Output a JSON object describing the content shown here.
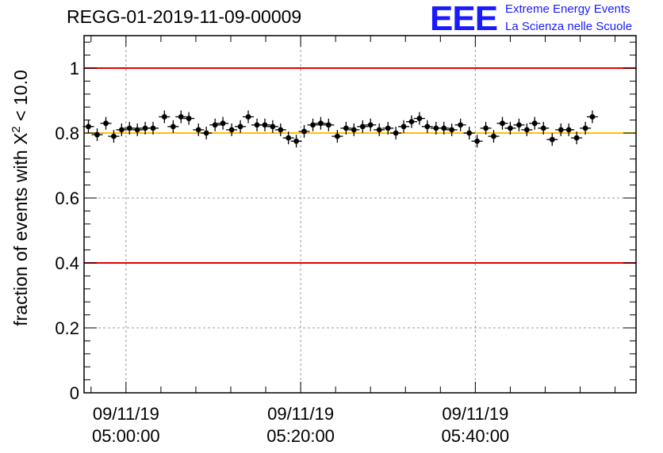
{
  "header": {
    "run_id": "REGG-01-2019-11-09-00009"
  },
  "logo": {
    "mark": "EEE",
    "line1": "Extreme Energy Events",
    "line2": "La Scienza nelle Scuole",
    "color": "#1a1aff"
  },
  "chart_data": {
    "type": "scatter",
    "title": "REGG-01-2019-11-09-00009",
    "xlabel": "",
    "ylabel": "fraction of events with χ² < 10.0",
    "ylabel_parts": {
      "pre": "fraction of events with X",
      "sup": "2",
      "post": " < 10.0"
    },
    "ylim": [
      0,
      1.1
    ],
    "y_ticks": [
      0,
      0.2,
      0.4,
      0.6,
      0.8,
      1
    ],
    "y_tick_labels": [
      "0",
      "0.2",
      "0.4",
      "0.6",
      "0.8",
      "1"
    ],
    "x_unit": "minutes since 05:00:00",
    "xlim": [
      -4.8,
      58.4
    ],
    "x_ticks": [
      {
        "value": 0,
        "date": "09/11/19",
        "time": "05:00:00"
      },
      {
        "value": 20,
        "date": "09/11/19",
        "time": "05:20:00"
      },
      {
        "value": 40,
        "date": "09/11/19",
        "time": "05:40:00"
      }
    ],
    "grid": true,
    "reference_lines": [
      {
        "y": 1.0,
        "color": "#e00000"
      },
      {
        "y": 0.8,
        "color": "#ffc000"
      },
      {
        "y": 0.4,
        "color": "#e00000"
      }
    ],
    "series": [
      {
        "name": "fraction",
        "color": "#000000",
        "points": [
          {
            "x": -4.3,
            "y": 0.82
          },
          {
            "x": -3.3,
            "y": 0.795
          },
          {
            "x": -2.3,
            "y": 0.83
          },
          {
            "x": -1.4,
            "y": 0.79
          },
          {
            "x": -0.5,
            "y": 0.81
          },
          {
            "x": 0.4,
            "y": 0.815
          },
          {
            "x": 1.3,
            "y": 0.81
          },
          {
            "x": 2.2,
            "y": 0.815
          },
          {
            "x": 3.1,
            "y": 0.815
          },
          {
            "x": 4.4,
            "y": 0.85
          },
          {
            "x": 5.4,
            "y": 0.82
          },
          {
            "x": 6.3,
            "y": 0.85
          },
          {
            "x": 7.2,
            "y": 0.845
          },
          {
            "x": 8.3,
            "y": 0.81
          },
          {
            "x": 9.2,
            "y": 0.8
          },
          {
            "x": 10.2,
            "y": 0.825
          },
          {
            "x": 11.1,
            "y": 0.83
          },
          {
            "x": 12.1,
            "y": 0.81
          },
          {
            "x": 13.1,
            "y": 0.82
          },
          {
            "x": 14.0,
            "y": 0.85
          },
          {
            "x": 15.0,
            "y": 0.825
          },
          {
            "x": 15.9,
            "y": 0.825
          },
          {
            "x": 16.8,
            "y": 0.82
          },
          {
            "x": 17.7,
            "y": 0.81
          },
          {
            "x": 18.6,
            "y": 0.785
          },
          {
            "x": 19.5,
            "y": 0.775
          },
          {
            "x": 20.4,
            "y": 0.805
          },
          {
            "x": 21.4,
            "y": 0.825
          },
          {
            "x": 22.3,
            "y": 0.83
          },
          {
            "x": 23.2,
            "y": 0.825
          },
          {
            "x": 24.2,
            "y": 0.79
          },
          {
            "x": 25.2,
            "y": 0.815
          },
          {
            "x": 26.1,
            "y": 0.81
          },
          {
            "x": 27.1,
            "y": 0.82
          },
          {
            "x": 28.0,
            "y": 0.825
          },
          {
            "x": 29.0,
            "y": 0.81
          },
          {
            "x": 30.0,
            "y": 0.815
          },
          {
            "x": 30.9,
            "y": 0.8
          },
          {
            "x": 31.8,
            "y": 0.82
          },
          {
            "x": 32.7,
            "y": 0.835
          },
          {
            "x": 33.6,
            "y": 0.845
          },
          {
            "x": 34.5,
            "y": 0.82
          },
          {
            "x": 35.5,
            "y": 0.815
          },
          {
            "x": 36.4,
            "y": 0.815
          },
          {
            "x": 37.3,
            "y": 0.81
          },
          {
            "x": 38.3,
            "y": 0.825
          },
          {
            "x": 39.3,
            "y": 0.8
          },
          {
            "x": 40.2,
            "y": 0.775
          },
          {
            "x": 41.2,
            "y": 0.815
          },
          {
            "x": 42.1,
            "y": 0.79
          },
          {
            "x": 43.1,
            "y": 0.83
          },
          {
            "x": 44.0,
            "y": 0.815
          },
          {
            "x": 45.0,
            "y": 0.825
          },
          {
            "x": 45.9,
            "y": 0.81
          },
          {
            "x": 46.8,
            "y": 0.83
          },
          {
            "x": 47.8,
            "y": 0.815
          },
          {
            "x": 48.8,
            "y": 0.78
          },
          {
            "x": 49.8,
            "y": 0.81
          },
          {
            "x": 50.7,
            "y": 0.81
          },
          {
            "x": 51.6,
            "y": 0.785
          },
          {
            "x": 52.6,
            "y": 0.815
          },
          {
            "x": 53.4,
            "y": 0.85
          }
        ]
      }
    ]
  }
}
